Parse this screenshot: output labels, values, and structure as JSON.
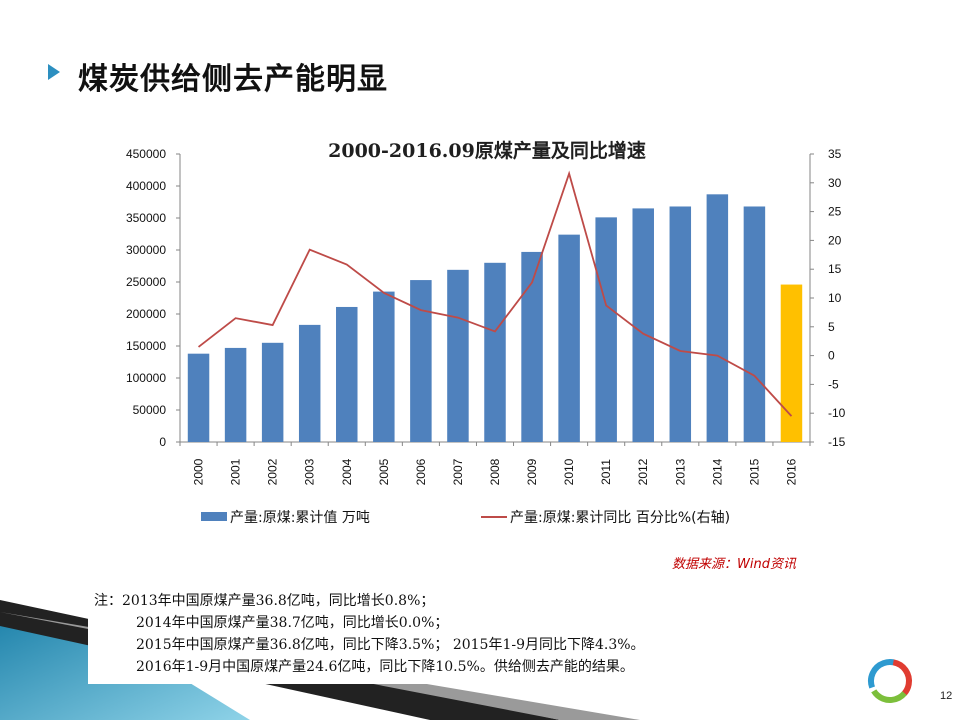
{
  "slide": {
    "title": "煤炭供给侧去产能明显",
    "page_number": "12"
  },
  "chart_data": {
    "type": "bar+line",
    "title": "2000-2016.09原煤产量及同比增速",
    "categories": [
      "2000",
      "2001",
      "2002",
      "2003",
      "2004",
      "2005",
      "2006",
      "2007",
      "2008",
      "2009",
      "2010",
      "2011",
      "2012",
      "2013",
      "2014",
      "2015",
      "2016"
    ],
    "y_left": {
      "min": 0,
      "max": 450000,
      "ticks": [
        0,
        50000,
        100000,
        150000,
        200000,
        250000,
        300000,
        350000,
        400000,
        450000
      ]
    },
    "y_right": {
      "min": -15,
      "max": 35,
      "ticks": [
        -15,
        -10,
        -5,
        0,
        5,
        10,
        15,
        20,
        25,
        30,
        35
      ]
    },
    "series": [
      {
        "name": "产量:原煤:累计值 万吨",
        "type": "bar",
        "axis": "left",
        "values": [
          138000,
          147000,
          155000,
          183000,
          211000,
          235000,
          253000,
          269000,
          280000,
          297000,
          324000,
          351000,
          365000,
          368000,
          387000,
          368000,
          246000
        ],
        "highlight_index": 16
      },
      {
        "name": "产量:原煤:累计同比 百分比%(右轴)",
        "type": "line",
        "axis": "right",
        "values": [
          1.5,
          6.5,
          5.3,
          18.4,
          15.8,
          10.9,
          7.9,
          6.6,
          4.2,
          12.7,
          31.6,
          8.7,
          3.8,
          0.8,
          0.0,
          -3.5,
          -10.5
        ]
      }
    ],
    "legend_position": "bottom",
    "grid": false,
    "colors": {
      "bar": "#4f81bd",
      "bar_highlight": "#ffc000",
      "line": "#be4b48"
    }
  },
  "source": "数据来源：Wind资讯",
  "note": {
    "lines": [
      "注：2013年中国原煤产量36.8亿吨，同比增长0.8%；",
      "2014年中国原煤产量38.7亿吨，同比增长0.0%；",
      "2015年中国原煤产量36.8亿吨，同比下降3.5%； 2015年1-9月同比下降4.3%。",
      "2016年1-9月中国原煤产量24.6亿吨，同比下降10.5%。供给侧去产能的结果。"
    ]
  }
}
